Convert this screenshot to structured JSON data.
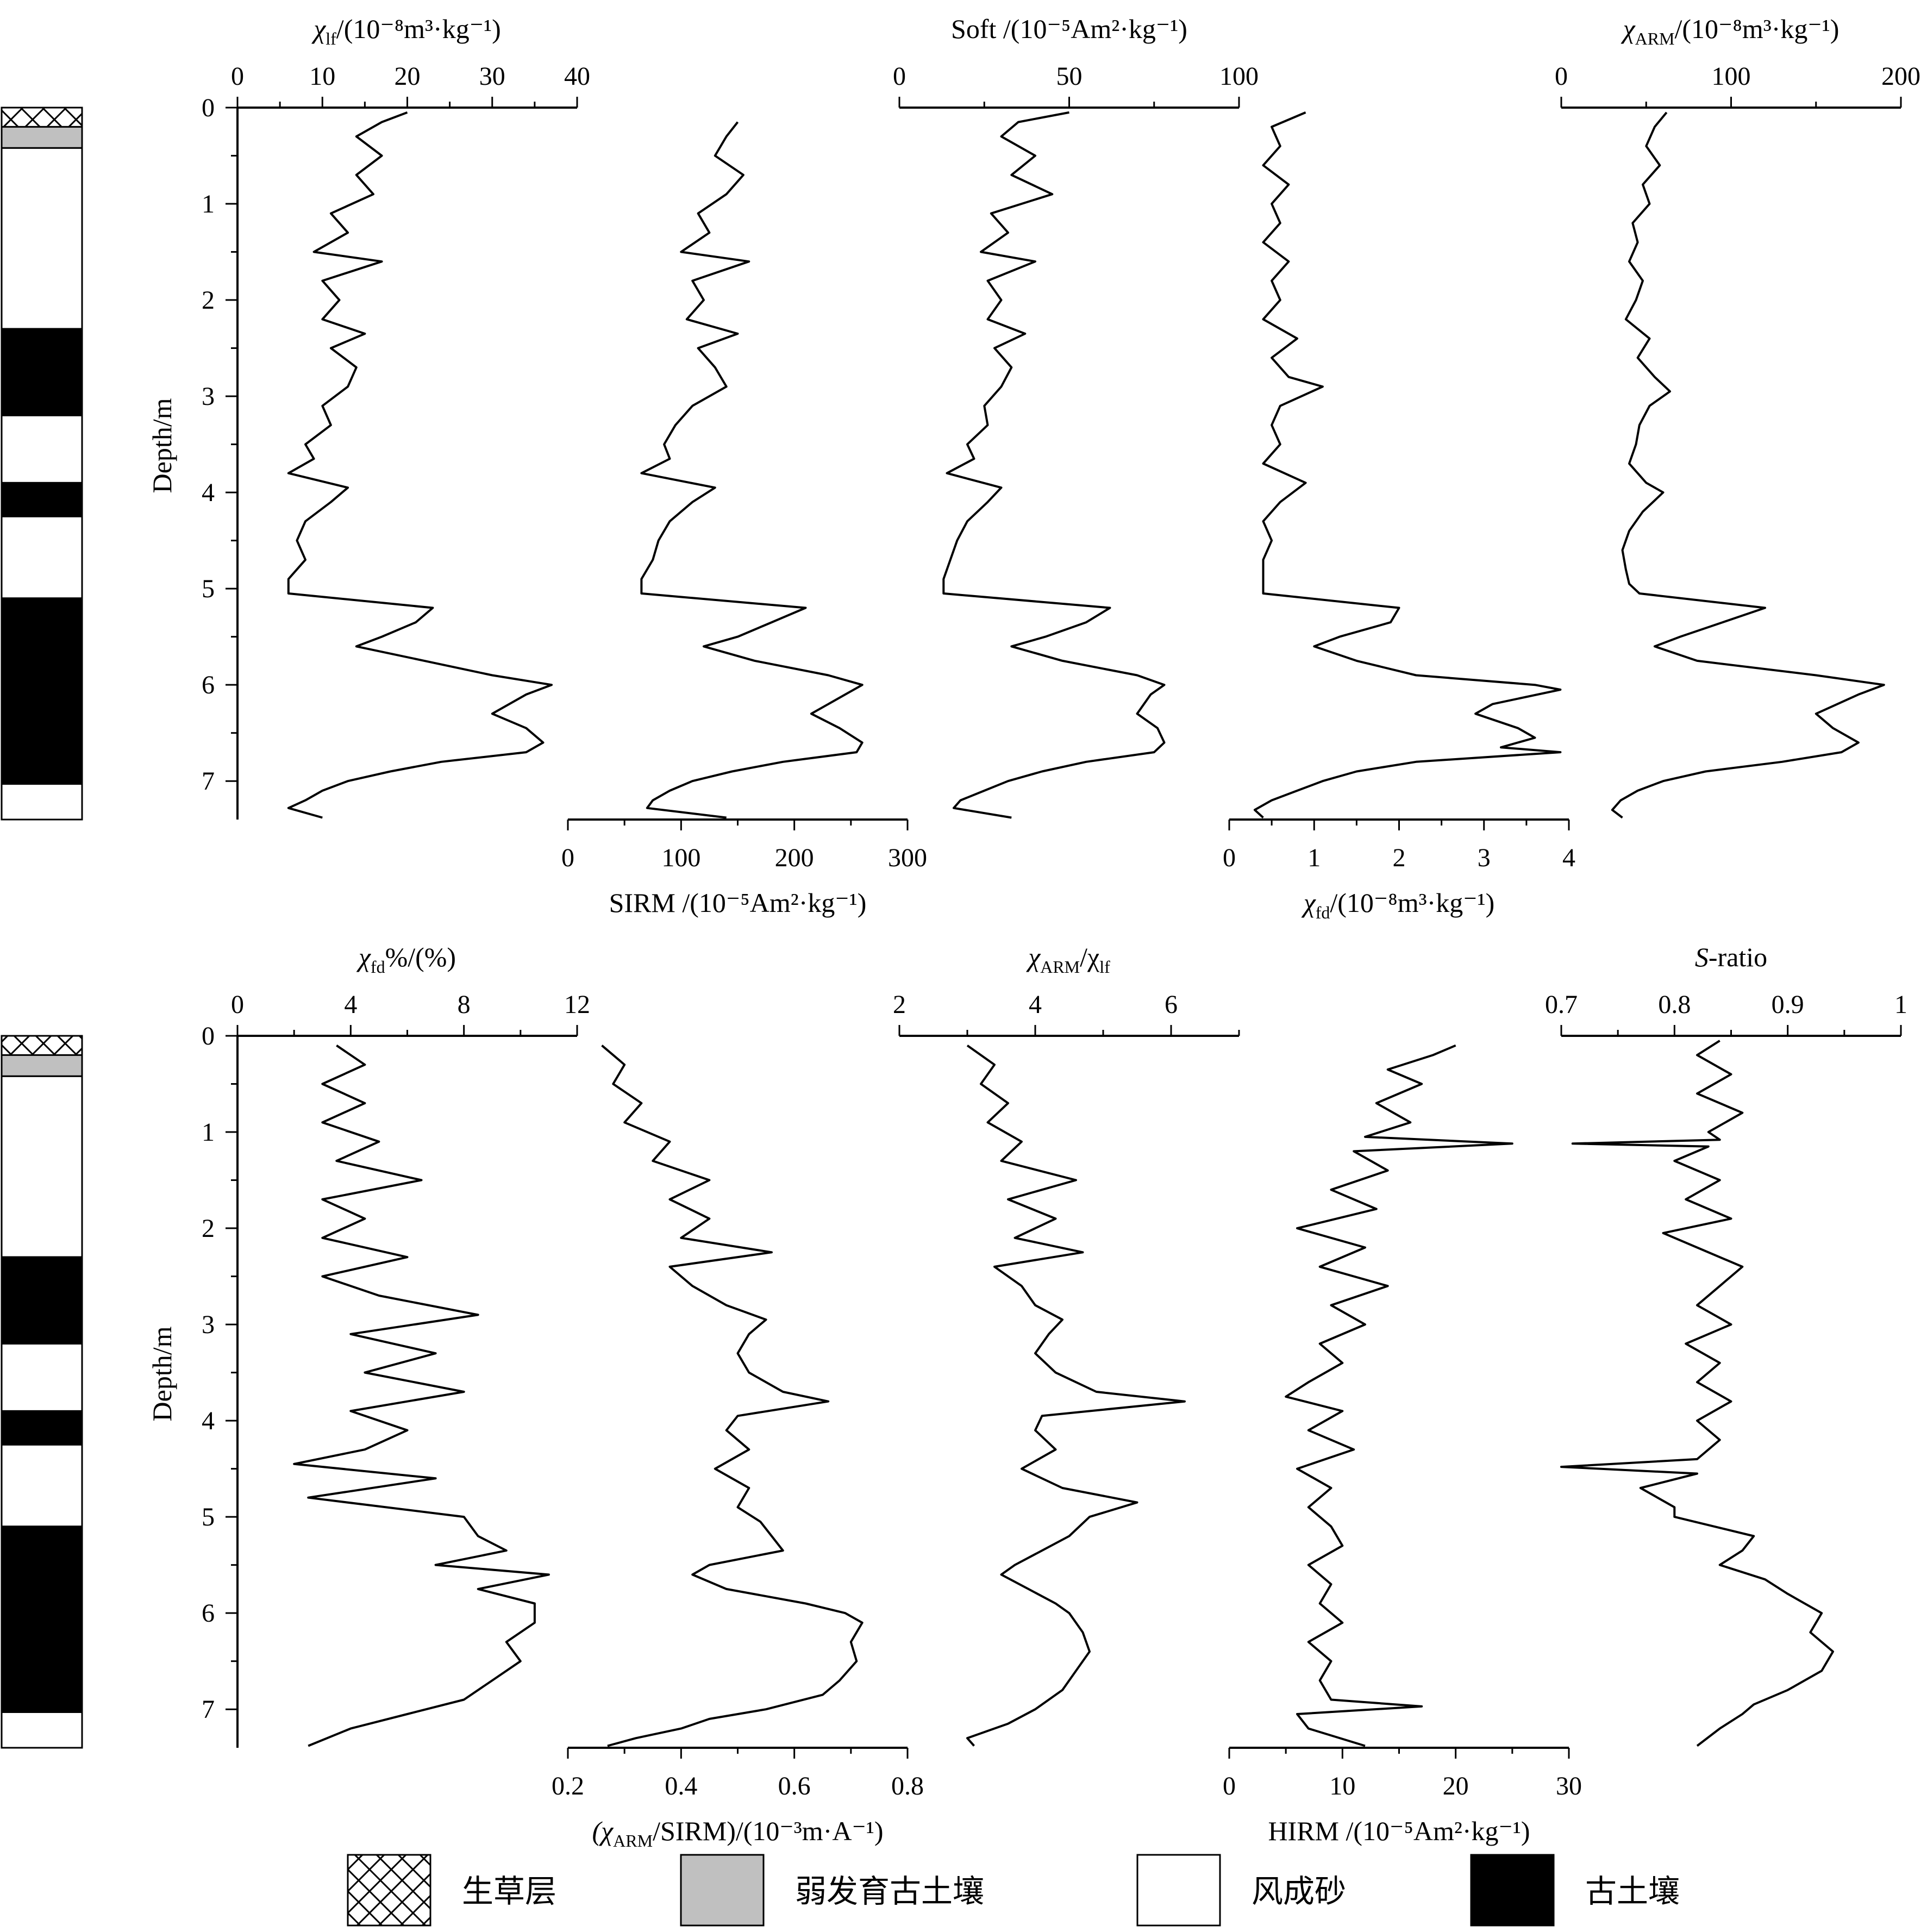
{
  "chart_data": {
    "type": "line",
    "depth_axis": {
      "label": "Depth/m",
      "range": [
        0,
        7.4
      ],
      "ticks": [
        0,
        1,
        2,
        3,
        4,
        5,
        6,
        7
      ],
      "reversed": true
    },
    "stratigraphy": [
      {
        "unit": "生草层",
        "top": 0.0,
        "bottom": 0.2
      },
      {
        "unit": "弱发育古土壤",
        "top": 0.2,
        "bottom": 0.42
      },
      {
        "unit": "风成砂",
        "top": 0.42,
        "bottom": 2.3
      },
      {
        "unit": "古土壤",
        "top": 2.3,
        "bottom": 3.2
      },
      {
        "unit": "风成砂",
        "top": 3.2,
        "bottom": 3.9
      },
      {
        "unit": "古土壤",
        "top": 3.9,
        "bottom": 4.25
      },
      {
        "unit": "风成砂",
        "top": 4.25,
        "bottom": 5.1
      },
      {
        "unit": "古土壤",
        "top": 5.1,
        "bottom": 7.03
      },
      {
        "unit": "风成砂",
        "top": 7.03,
        "bottom": 7.4
      }
    ],
    "legend": [
      "生草层",
      "弱发育古土壤",
      "风成砂",
      "古土壤"
    ],
    "profiles": [
      {
        "id": "chilf",
        "row": 1,
        "col": 1,
        "axis_side": "top",
        "title_sym": "χ",
        "title_sub": "lf",
        "title_rest": "/(10⁻⁸m³·kg⁻¹)",
        "xlim": [
          0,
          40
        ],
        "ticks": [
          0,
          10,
          20,
          30,
          40
        ],
        "depth": [
          0.05,
          0.15,
          0.3,
          0.5,
          0.7,
          0.9,
          1.1,
          1.3,
          1.5,
          1.6,
          1.8,
          2.0,
          2.2,
          2.35,
          2.5,
          2.7,
          2.9,
          3.1,
          3.3,
          3.5,
          3.65,
          3.8,
          3.95,
          4.1,
          4.3,
          4.5,
          4.7,
          4.9,
          5.05,
          5.2,
          5.35,
          5.5,
          5.6,
          5.75,
          5.9,
          6.0,
          6.1,
          6.3,
          6.45,
          6.6,
          6.7,
          6.8,
          6.9,
          7.0,
          7.1,
          7.2,
          7.28,
          7.38
        ],
        "values": [
          20,
          17,
          14,
          17,
          14,
          16,
          11,
          13,
          9,
          17,
          10,
          12,
          10,
          15,
          11,
          14,
          13,
          10,
          11,
          8,
          9,
          6,
          13,
          11,
          8,
          7,
          8,
          6,
          6,
          23,
          21,
          17,
          14,
          22,
          30,
          37,
          34,
          30,
          34,
          36,
          34,
          24,
          18,
          13,
          10,
          8,
          6,
          10
        ]
      },
      {
        "id": "sirm",
        "row": 1,
        "col": 2,
        "axis_side": "bottom",
        "title_sym": "",
        "title_sub": "",
        "title_rest": "SIRM /(10⁻⁵Am²·kg⁻¹)",
        "xlim": [
          0,
          300
        ],
        "ticks": [
          0,
          100,
          200,
          300
        ],
        "depth": [
          0.15,
          0.3,
          0.5,
          0.7,
          0.9,
          1.1,
          1.3,
          1.5,
          1.6,
          1.8,
          2.0,
          2.2,
          2.35,
          2.5,
          2.7,
          2.9,
          3.1,
          3.3,
          3.5,
          3.65,
          3.8,
          3.95,
          4.1,
          4.3,
          4.5,
          4.7,
          4.9,
          5.05,
          5.2,
          5.35,
          5.5,
          5.6,
          5.75,
          5.9,
          6.0,
          6.1,
          6.3,
          6.45,
          6.6,
          6.7,
          6.8,
          6.9,
          7.0,
          7.1,
          7.2,
          7.28,
          7.38
        ],
        "values": [
          150,
          140,
          130,
          155,
          140,
          115,
          125,
          100,
          160,
          110,
          120,
          105,
          150,
          115,
          130,
          140,
          110,
          95,
          85,
          90,
          65,
          130,
          110,
          90,
          80,
          75,
          65,
          65,
          210,
          180,
          150,
          120,
          165,
          230,
          260,
          245,
          215,
          240,
          260,
          255,
          190,
          145,
          110,
          90,
          75,
          70,
          140
        ]
      },
      {
        "id": "soft",
        "row": 1,
        "col": 3,
        "axis_side": "top",
        "title_sym": "",
        "title_sub": "",
        "title_rest": "Soft /(10⁻⁵Am²·kg⁻¹)",
        "xlim": [
          0,
          100
        ],
        "ticks": [
          0,
          50,
          100
        ],
        "depth": [
          0.05,
          0.15,
          0.3,
          0.5,
          0.7,
          0.9,
          1.1,
          1.3,
          1.5,
          1.6,
          1.8,
          2.0,
          2.2,
          2.35,
          2.5,
          2.7,
          2.9,
          3.1,
          3.3,
          3.5,
          3.65,
          3.8,
          3.95,
          4.1,
          4.3,
          4.5,
          4.7,
          4.9,
          5.05,
          5.2,
          5.35,
          5.5,
          5.6,
          5.75,
          5.9,
          6.0,
          6.1,
          6.3,
          6.45,
          6.6,
          6.7,
          6.8,
          6.9,
          7.0,
          7.1,
          7.2,
          7.28,
          7.38
        ],
        "values": [
          50,
          35,
          30,
          40,
          33,
          45,
          27,
          32,
          24,
          40,
          26,
          30,
          26,
          37,
          28,
          33,
          30,
          25,
          26,
          20,
          22,
          14,
          30,
          26,
          20,
          17,
          15,
          13,
          13,
          62,
          55,
          43,
          33,
          48,
          70,
          78,
          74,
          70,
          76,
          78,
          75,
          55,
          42,
          32,
          25,
          18,
          16,
          33
        ]
      },
      {
        "id": "chifd",
        "row": 1,
        "col": 4,
        "axis_side": "bottom",
        "title_sym": "χ",
        "title_sub": "fd",
        "title_rest": "/(10⁻⁸m³·kg⁻¹)",
        "xlim": [
          0,
          4
        ],
        "ticks": [
          0,
          1,
          2,
          3,
          4
        ],
        "depth": [
          0.05,
          0.2,
          0.4,
          0.6,
          0.8,
          1.0,
          1.2,
          1.4,
          1.6,
          1.8,
          2.0,
          2.2,
          2.4,
          2.6,
          2.8,
          2.9,
          3.1,
          3.3,
          3.5,
          3.7,
          3.9,
          4.1,
          4.3,
          4.5,
          4.7,
          4.9,
          5.05,
          5.2,
          5.35,
          5.5,
          5.6,
          5.75,
          5.9,
          6.0,
          6.05,
          6.2,
          6.3,
          6.45,
          6.55,
          6.65,
          6.7,
          6.8,
          6.9,
          7.0,
          7.1,
          7.2,
          7.3,
          7.38
        ],
        "values": [
          0.9,
          0.5,
          0.6,
          0.4,
          0.7,
          0.5,
          0.6,
          0.4,
          0.7,
          0.5,
          0.6,
          0.4,
          0.8,
          0.5,
          0.7,
          1.1,
          0.6,
          0.5,
          0.6,
          0.4,
          0.9,
          0.6,
          0.4,
          0.5,
          0.4,
          0.4,
          0.4,
          2.0,
          1.9,
          1.3,
          1.0,
          1.5,
          2.2,
          3.6,
          3.9,
          3.1,
          2.9,
          3.4,
          3.6,
          3.2,
          3.9,
          2.2,
          1.5,
          1.1,
          0.8,
          0.5,
          0.3,
          0.4
        ]
      },
      {
        "id": "chiarm",
        "row": 1,
        "col": 5,
        "axis_side": "top",
        "title_sym": "χ",
        "title_sub": "ARM",
        "title_rest": "/(10⁻⁸m³·kg⁻¹)",
        "xlim": [
          0,
          200
        ],
        "ticks": [
          0,
          100,
          200
        ],
        "depth": [
          0.05,
          0.2,
          0.4,
          0.6,
          0.8,
          1.0,
          1.2,
          1.4,
          1.6,
          1.8,
          2.0,
          2.2,
          2.4,
          2.6,
          2.8,
          2.95,
          3.1,
          3.3,
          3.5,
          3.7,
          3.9,
          4.0,
          4.2,
          4.4,
          4.6,
          4.8,
          4.95,
          5.05,
          5.2,
          5.35,
          5.5,
          5.6,
          5.75,
          5.9,
          6.0,
          6.1,
          6.3,
          6.45,
          6.6,
          6.7,
          6.8,
          6.9,
          7.0,
          7.1,
          7.2,
          7.3,
          7.38
        ],
        "values": [
          62,
          55,
          50,
          58,
          48,
          52,
          42,
          45,
          40,
          48,
          44,
          38,
          52,
          45,
          55,
          64,
          52,
          46,
          44,
          40,
          50,
          60,
          48,
          40,
          36,
          38,
          40,
          46,
          120,
          95,
          70,
          55,
          80,
          150,
          190,
          175,
          150,
          160,
          175,
          165,
          130,
          85,
          60,
          45,
          35,
          30,
          36
        ]
      },
      {
        "id": "chifdpct",
        "row": 2,
        "col": 1,
        "axis_side": "top",
        "title_sym": "χ",
        "title_sub": "fd",
        "title_rest": "%/(%)",
        "xlim": [
          0,
          12
        ],
        "ticks": [
          0,
          4,
          8,
          12
        ],
        "depth": [
          0.1,
          0.3,
          0.5,
          0.7,
          0.9,
          1.1,
          1.3,
          1.5,
          1.7,
          1.9,
          2.1,
          2.3,
          2.5,
          2.7,
          2.9,
          3.1,
          3.3,
          3.5,
          3.7,
          3.9,
          4.1,
          4.3,
          4.45,
          4.6,
          4.8,
          5.0,
          5.2,
          5.35,
          5.5,
          5.6,
          5.75,
          5.9,
          6.1,
          6.3,
          6.5,
          6.7,
          6.9,
          7.05,
          7.2,
          7.38
        ],
        "values": [
          3.5,
          4.5,
          3.0,
          4.5,
          3.0,
          5.0,
          3.5,
          6.5,
          3.0,
          4.5,
          3.0,
          6.0,
          3.0,
          5.0,
          8.5,
          4.0,
          7.0,
          4.5,
          8.0,
          4.0,
          6.0,
          4.5,
          2.0,
          7.0,
          2.5,
          8.0,
          8.5,
          9.5,
          7.0,
          11.0,
          8.5,
          10.5,
          10.5,
          9.5,
          10.0,
          9.0,
          8.0,
          6.0,
          4.0,
          2.5
        ]
      },
      {
        "id": "chiarm_sirm",
        "row": 2,
        "col": 2,
        "axis_side": "bottom",
        "title_sym": "(χ",
        "title_sub": "ARM",
        "title_rest": "/SIRM)/(10⁻³m·A⁻¹)",
        "xlim": [
          0.2,
          0.8
        ],
        "ticks": [
          0.2,
          0.4,
          0.6,
          0.8
        ],
        "depth": [
          0.1,
          0.3,
          0.5,
          0.7,
          0.9,
          1.1,
          1.3,
          1.5,
          1.7,
          1.9,
          2.1,
          2.25,
          2.4,
          2.6,
          2.8,
          2.95,
          3.1,
          3.3,
          3.5,
          3.7,
          3.8,
          3.95,
          4.1,
          4.3,
          4.5,
          4.7,
          4.9,
          5.05,
          5.2,
          5.35,
          5.5,
          5.6,
          5.75,
          5.9,
          6.0,
          6.1,
          6.3,
          6.5,
          6.7,
          6.85,
          7.0,
          7.1,
          7.2,
          7.3,
          7.38
        ],
        "values": [
          0.26,
          0.3,
          0.28,
          0.33,
          0.3,
          0.38,
          0.35,
          0.45,
          0.38,
          0.45,
          0.4,
          0.56,
          0.38,
          0.42,
          0.48,
          0.55,
          0.52,
          0.5,
          0.52,
          0.58,
          0.66,
          0.5,
          0.48,
          0.52,
          0.46,
          0.52,
          0.5,
          0.54,
          0.56,
          0.58,
          0.45,
          0.42,
          0.48,
          0.62,
          0.69,
          0.72,
          0.7,
          0.71,
          0.68,
          0.65,
          0.55,
          0.45,
          0.4,
          0.32,
          0.27
        ]
      },
      {
        "id": "chiarm_chilf",
        "row": 2,
        "col": 3,
        "axis_side": "top",
        "title_sym": "χ",
        "title_sub": "ARM",
        "title_rest": "/χ",
        "title_sub2": "lf",
        "xlim": [
          2,
          7
        ],
        "ticks": [
          2,
          4,
          6
        ],
        "depth": [
          0.1,
          0.3,
          0.5,
          0.7,
          0.9,
          1.1,
          1.3,
          1.5,
          1.7,
          1.9,
          2.1,
          2.25,
          2.4,
          2.6,
          2.8,
          2.95,
          3.1,
          3.3,
          3.5,
          3.7,
          3.8,
          3.95,
          4.1,
          4.3,
          4.5,
          4.7,
          4.85,
          5.0,
          5.2,
          5.35,
          5.5,
          5.6,
          5.75,
          5.9,
          6.0,
          6.2,
          6.4,
          6.6,
          6.8,
          7.0,
          7.15,
          7.3,
          7.38
        ],
        "values": [
          3.0,
          3.4,
          3.2,
          3.6,
          3.3,
          3.8,
          3.5,
          4.6,
          3.6,
          4.3,
          3.7,
          4.7,
          3.4,
          3.8,
          4.0,
          4.4,
          4.2,
          4.0,
          4.3,
          4.9,
          6.2,
          4.1,
          4.0,
          4.3,
          3.8,
          4.4,
          5.5,
          4.8,
          4.5,
          4.1,
          3.7,
          3.5,
          3.9,
          4.3,
          4.5,
          4.7,
          4.8,
          4.6,
          4.4,
          4.0,
          3.6,
          3.0,
          3.1
        ]
      },
      {
        "id": "hirm",
        "row": 2,
        "col": 4,
        "axis_side": "bottom",
        "title_sym": "",
        "title_sub": "",
        "title_rest": "HIRM /(10⁻⁵Am²·kg⁻¹)",
        "xlim": [
          0,
          30
        ],
        "ticks": [
          0,
          10,
          20,
          30
        ],
        "depth": [
          0.1,
          0.2,
          0.35,
          0.5,
          0.7,
          0.9,
          1.05,
          1.12,
          1.2,
          1.4,
          1.6,
          1.8,
          2.0,
          2.2,
          2.4,
          2.6,
          2.8,
          3.0,
          3.2,
          3.4,
          3.6,
          3.75,
          3.9,
          4.1,
          4.3,
          4.5,
          4.7,
          4.9,
          5.1,
          5.3,
          5.5,
          5.7,
          5.9,
          6.1,
          6.3,
          6.5,
          6.7,
          6.9,
          6.97,
          7.05,
          7.2,
          7.38
        ],
        "values": [
          20,
          18,
          14,
          17,
          13,
          16,
          12,
          25,
          11,
          14,
          9,
          13,
          6,
          12,
          8,
          14,
          9,
          12,
          8,
          10,
          7,
          5,
          10,
          7,
          11,
          6,
          9,
          7,
          9,
          10,
          7,
          9,
          8,
          10,
          7,
          9,
          8,
          9,
          17,
          6,
          7,
          12
        ]
      },
      {
        "id": "sratio",
        "row": 2,
        "col": 5,
        "axis_side": "top",
        "title_sym": "S",
        "title_sub": "",
        "title_rest": "-ratio",
        "xlim": [
          0.7,
          1.0
        ],
        "ticks": [
          0.7,
          0.8,
          0.9,
          1.0
        ],
        "depth": [
          0.05,
          0.2,
          0.4,
          0.6,
          0.8,
          1.0,
          1.08,
          1.12,
          1.15,
          1.3,
          1.5,
          1.7,
          1.9,
          2.05,
          2.2,
          2.4,
          2.6,
          2.8,
          3.0,
          3.2,
          3.4,
          3.6,
          3.8,
          4.0,
          4.2,
          4.4,
          4.48,
          4.55,
          4.7,
          4.9,
          5.0,
          5.2,
          5.35,
          5.5,
          5.65,
          5.8,
          6.0,
          6.2,
          6.4,
          6.6,
          6.8,
          6.95,
          7.05,
          7.2,
          7.38
        ],
        "values": [
          0.84,
          0.82,
          0.85,
          0.82,
          0.86,
          0.83,
          0.84,
          0.71,
          0.83,
          0.8,
          0.84,
          0.81,
          0.85,
          0.79,
          0.82,
          0.86,
          0.84,
          0.82,
          0.85,
          0.81,
          0.84,
          0.82,
          0.85,
          0.82,
          0.84,
          0.82,
          0.7,
          0.82,
          0.77,
          0.8,
          0.8,
          0.87,
          0.86,
          0.84,
          0.88,
          0.9,
          0.93,
          0.92,
          0.94,
          0.93,
          0.9,
          0.87,
          0.86,
          0.84,
          0.82
        ]
      }
    ]
  }
}
